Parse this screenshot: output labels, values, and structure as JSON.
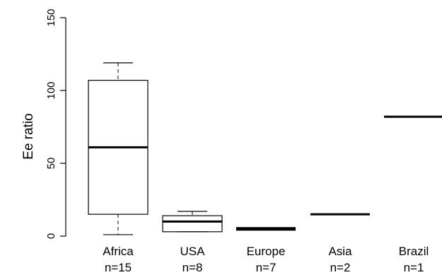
{
  "chart_data": {
    "type": "boxplot",
    "title": "",
    "xlabel": "",
    "ylabel": "Ee ratio",
    "ylim": [
      0,
      150
    ],
    "yticks": [
      "0",
      "50",
      "100",
      "150"
    ],
    "grid": false,
    "legend": "none",
    "groups": [
      {
        "label": "Africa",
        "n_label": "n=15",
        "min": 1,
        "q1": 15,
        "median": 61,
        "q3": 107,
        "max": 119
      },
      {
        "label": "USA",
        "n_label": "n=8",
        "min": 3,
        "q1": 3,
        "median": 10,
        "q3": 14,
        "max": 17
      },
      {
        "label": "Europe",
        "n_label": "n=7",
        "min": 5,
        "q1": 5,
        "median": 5,
        "q3": 5,
        "max": 5
      },
      {
        "label": "Asia",
        "n_label": "n=2",
        "min": 15,
        "q1": 15,
        "median": 15,
        "q3": 15,
        "max": 15
      },
      {
        "label": "Brazil",
        "n_label": "n=1",
        "min": 82,
        "q1": 82,
        "median": 82,
        "q3": 82,
        "max": 82
      }
    ]
  }
}
